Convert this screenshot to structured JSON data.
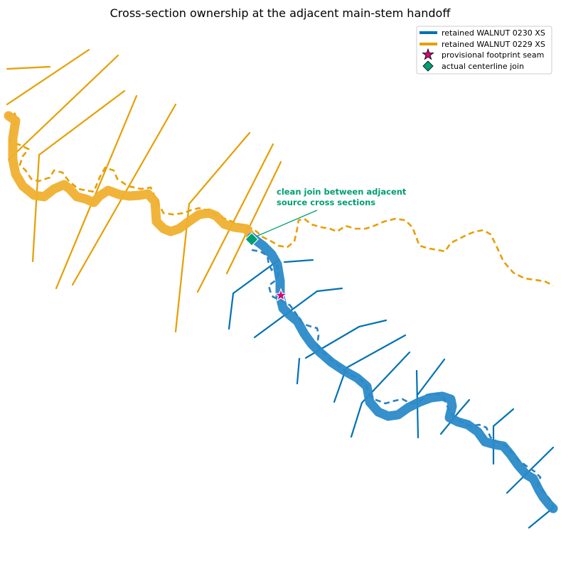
{
  "title": "Cross-section ownership at the adjacent main-stem handoff",
  "colors": {
    "walnut_0230": "#0072b2",
    "walnut_0230_centerline": "#2a8ac8",
    "walnut_0229": "#e69f00",
    "walnut_0229_centerline": "#f0b030",
    "seam": "#cc0a7a",
    "join": "#009e73",
    "annotation": "#009e73"
  },
  "legend": {
    "items": [
      {
        "label": "retained WALNUT 0230 XS",
        "symbol": "line",
        "color": "#0072b2"
      },
      {
        "label": "retained WALNUT 0229 XS",
        "symbol": "line",
        "color": "#e69f00"
      },
      {
        "label": "provisional footprint seam",
        "symbol": "star",
        "color": "#cc0a7a"
      },
      {
        "label": "actual centerline join",
        "symbol": "diamond",
        "color": "#009e73"
      }
    ]
  },
  "annotation": {
    "line1": "clean join between adjacent",
    "line2": "source cross sections"
  }
}
